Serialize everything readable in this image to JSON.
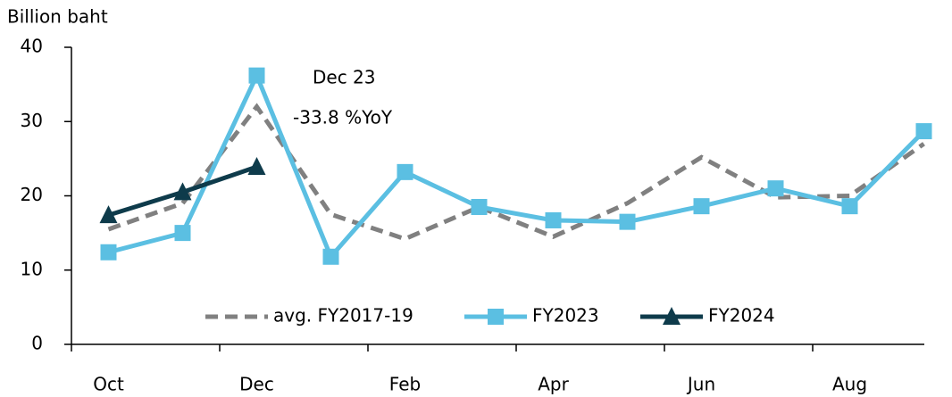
{
  "chart_data": {
    "type": "line",
    "y_label": "Billion baht",
    "annotations": [
      "Dec 23",
      "-33.8 %YoY"
    ],
    "categories": [
      "Oct",
      null,
      "Dec",
      null,
      "Feb",
      null,
      "Apr",
      null,
      "Jun",
      null,
      "Aug",
      null
    ],
    "series": [
      {
        "name": "avg. FY2017-19",
        "color": "#808080",
        "dashed": true,
        "marker": null,
        "values": [
          15.5,
          19,
          32,
          17.5,
          14.2,
          18.5,
          14.5,
          19,
          25.2,
          19.8,
          20,
          27
        ]
      },
      {
        "name": "FY2023",
        "color": "#5bbfe2",
        "dashed": false,
        "marker": "square",
        "values": [
          12.4,
          15,
          36.2,
          11.8,
          23.2,
          18.5,
          16.7,
          16.5,
          18.6,
          21,
          18.6,
          28.7
        ]
      },
      {
        "name": "FY2024",
        "color": "#0e3b4b",
        "dashed": false,
        "marker": "triangle",
        "values": [
          17.4,
          20.5,
          23.9,
          null,
          null,
          null,
          null,
          null,
          null,
          null,
          null,
          null
        ]
      }
    ],
    "ylim": [
      0,
      40
    ],
    "yticks": [
      0,
      10,
      20,
      30,
      40
    ],
    "grid": false
  }
}
